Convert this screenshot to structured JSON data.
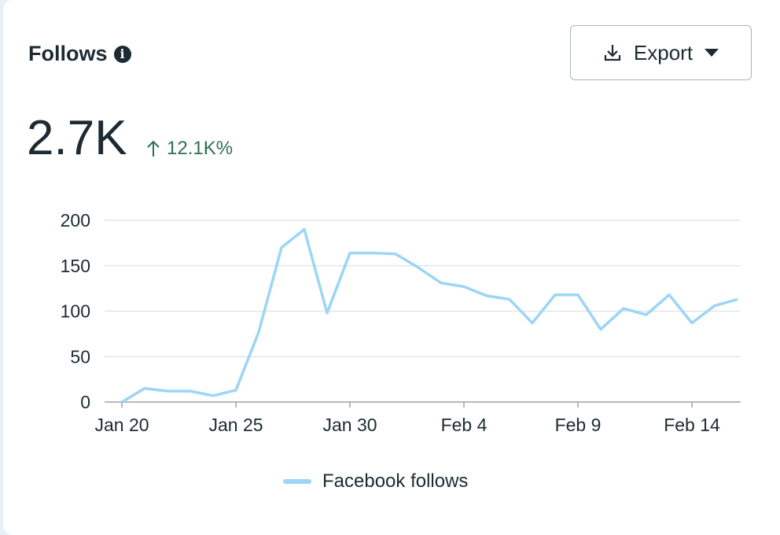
{
  "header": {
    "title": "Follows",
    "info_icon": "info-icon",
    "export_label": "Export"
  },
  "summary": {
    "value": "2.7K",
    "change": "12.1K%",
    "change_color": "#2e7050"
  },
  "chart_data": {
    "type": "line",
    "title": "Follows",
    "xlabel": "",
    "ylabel": "",
    "ylim": [
      0,
      200
    ],
    "yticks": [
      0,
      50,
      100,
      150,
      200
    ],
    "x": [
      "Jan 20",
      "Jan 21",
      "Jan 22",
      "Jan 23",
      "Jan 24",
      "Jan 25",
      "Jan 26",
      "Jan 27",
      "Jan 28",
      "Jan 29",
      "Jan 30",
      "Jan 31",
      "Feb 1",
      "Feb 2",
      "Feb 3",
      "Feb 4",
      "Feb 5",
      "Feb 6",
      "Feb 7",
      "Feb 8",
      "Feb 9",
      "Feb 10",
      "Feb 11",
      "Feb 12",
      "Feb 13",
      "Feb 14",
      "Feb 15",
      "Feb 16"
    ],
    "xtick_labels": [
      "Jan 20",
      "Jan 25",
      "Jan 30",
      "Feb 4",
      "Feb 9",
      "Feb 14"
    ],
    "xtick_indices": [
      0,
      5,
      10,
      15,
      20,
      25
    ],
    "series": [
      {
        "name": "Facebook follows",
        "color": "#9dd5f7",
        "values": [
          0,
          15,
          12,
          12,
          7,
          13,
          77,
          170,
          190,
          98,
          164,
          164,
          163,
          148,
          131,
          127,
          117,
          113,
          87,
          118,
          118,
          80,
          103,
          96,
          118,
          87,
          106,
          113
        ]
      }
    ],
    "grid": true,
    "legend": "bottom-center"
  }
}
